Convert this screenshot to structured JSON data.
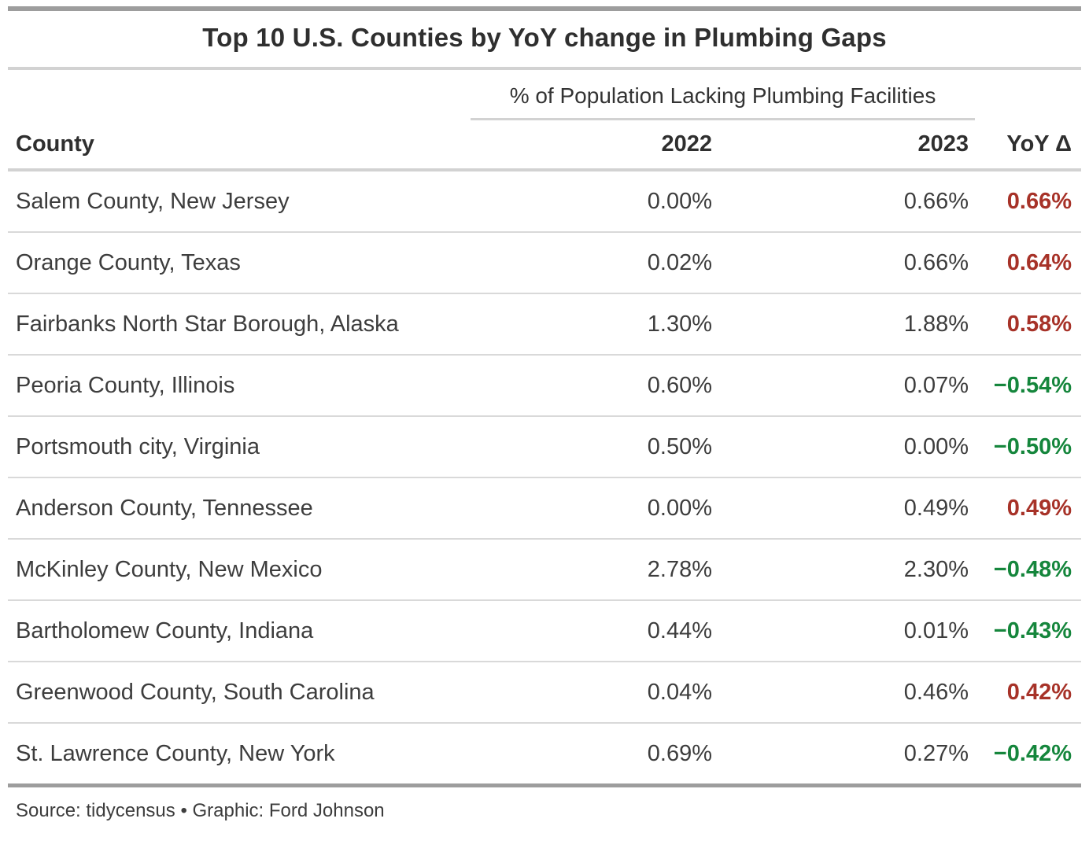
{
  "title": "Top 10 U.S. Counties by YoY change in Plumbing Gaps",
  "spanner_label": "% of Population Lacking Plumbing Facilities",
  "columns": {
    "county": "County",
    "y2022": "2022",
    "y2023": "2023",
    "yoy": "YoY Δ"
  },
  "rows": [
    {
      "county": "Salem County, New Jersey",
      "y2022": "0.00%",
      "y2023": "0.66%",
      "yoy": "0.66%",
      "direction": "up"
    },
    {
      "county": "Orange County, Texas",
      "y2022": "0.02%",
      "y2023": "0.66%",
      "yoy": "0.64%",
      "direction": "up"
    },
    {
      "county": "Fairbanks North Star Borough, Alaska",
      "y2022": "1.30%",
      "y2023": "1.88%",
      "yoy": "0.58%",
      "direction": "up"
    },
    {
      "county": "Peoria County, Illinois",
      "y2022": "0.60%",
      "y2023": "0.07%",
      "yoy": "−0.54%",
      "direction": "down"
    },
    {
      "county": "Portsmouth city, Virginia",
      "y2022": "0.50%",
      "y2023": "0.00%",
      "yoy": "−0.50%",
      "direction": "down"
    },
    {
      "county": "Anderson County, Tennessee",
      "y2022": "0.00%",
      "y2023": "0.49%",
      "yoy": "0.49%",
      "direction": "up"
    },
    {
      "county": "McKinley County, New Mexico",
      "y2022": "2.78%",
      "y2023": "2.30%",
      "yoy": "−0.48%",
      "direction": "down"
    },
    {
      "county": "Bartholomew County, Indiana",
      "y2022": "0.44%",
      "y2023": "0.01%",
      "yoy": "−0.43%",
      "direction": "down"
    },
    {
      "county": "Greenwood County, South Carolina",
      "y2022": "0.04%",
      "y2023": "0.46%",
      "yoy": "0.42%",
      "direction": "up"
    },
    {
      "county": "St. Lawrence County, New York",
      "y2022": "0.69%",
      "y2023": "0.27%",
      "yoy": "−0.42%",
      "direction": "down"
    }
  ],
  "source_note": "Source: tidycensus • Graphic: Ford Johnson",
  "colors": {
    "increase": "#a73228",
    "decrease": "#15863c",
    "border_dark": "#9d9d9d",
    "border_light": "#d2d2d2",
    "text": "#3d3d3d"
  },
  "chart_data": {
    "type": "table",
    "title": "Top 10 U.S. Counties by YoY change in Plumbing Gaps",
    "column_spanner": "% of Population Lacking Plumbing Facilities",
    "columns": [
      "County",
      "2022",
      "2023",
      "YoY Δ"
    ],
    "units": "percent of population lacking plumbing facilities",
    "rows": [
      [
        "Salem County, New Jersey",
        0.0,
        0.66,
        0.66
      ],
      [
        "Orange County, Texas",
        0.02,
        0.66,
        0.64
      ],
      [
        "Fairbanks North Star Borough, Alaska",
        1.3,
        1.88,
        0.58
      ],
      [
        "Peoria County, Illinois",
        0.6,
        0.07,
        -0.54
      ],
      [
        "Portsmouth city, Virginia",
        0.5,
        0.0,
        -0.5
      ],
      [
        "Anderson County, Tennessee",
        0.0,
        0.49,
        0.49
      ],
      [
        "McKinley County, New Mexico",
        2.78,
        2.3,
        -0.48
      ],
      [
        "Bartholomew County, Indiana",
        0.44,
        0.01,
        -0.43
      ],
      [
        "Greenwood County, South Carolina",
        0.04,
        0.46,
        0.42
      ],
      [
        "St. Lawrence County, New York",
        0.69,
        0.27,
        -0.42
      ]
    ],
    "source": "Source: tidycensus • Graphic: Ford Johnson",
    "legend_position": "none",
    "grid": "horizontal-row-separators"
  }
}
